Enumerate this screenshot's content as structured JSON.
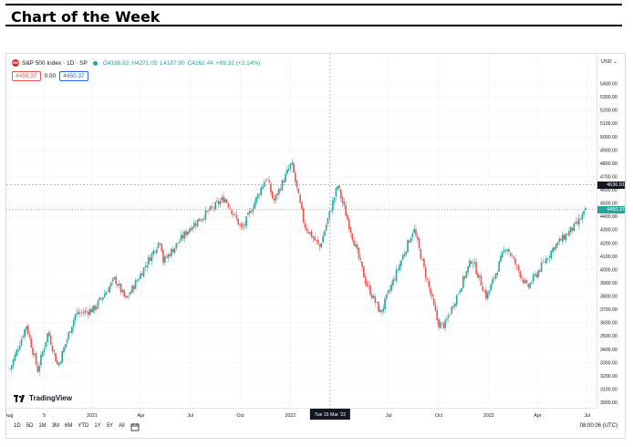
{
  "page": {
    "title": "Chart of the Week"
  },
  "chart": {
    "legend": {
      "symbol_badge": "500",
      "title": "S&P 500 Index · 1D · SP",
      "open": "O4188.82",
      "high": "H4271.05",
      "low": "L4187.90",
      "close": "C4262.44",
      "change": "+89.32 (+2.14%)"
    },
    "sell_price": "4450.37",
    "spread": "0.00",
    "buy_price": "4450.37",
    "currency": "USD",
    "crosshair_price": "4636.91",
    "last_price": "4450.37",
    "crosshair_date": "Tue 15 Mar '22",
    "logo_text": "TradingView",
    "timeframes": [
      "1D",
      "5D",
      "1M",
      "3M",
      "6M",
      "YTD",
      "1Y",
      "5Y",
      "All"
    ],
    "clock": "08:00:06 (UTC)",
    "colors": {
      "up": "#26a69a",
      "down": "#ef5350",
      "axis_text": "#131722",
      "grid": "#f0f3fa",
      "crosshair": "#9598a1"
    }
  },
  "chart_data": {
    "type": "candlestick",
    "title": "S&P 500 Index · 1D · SP",
    "ylim": [
      3000,
      5500
    ],
    "y_ticks": [
      5400,
      5300,
      5200,
      5100,
      5000,
      4900,
      4800,
      4700,
      4600,
      4500,
      4400,
      4300,
      4200,
      4100,
      4000,
      3900,
      3800,
      3700,
      3600,
      3500,
      3400,
      3300,
      3200,
      3100,
      3000
    ],
    "x_ticks": [
      {
        "label": "Aug",
        "date": "2020-08"
      },
      {
        "label": "5",
        "date": "2020-10-05"
      },
      {
        "label": "2021",
        "date": "2021-01"
      },
      {
        "label": "Apr",
        "date": "2021-04"
      },
      {
        "label": "Jul",
        "date": "2021-07"
      },
      {
        "label": "Oct",
        "date": "2021-10"
      },
      {
        "label": "2022",
        "date": "2022-01"
      },
      {
        "label": "Jul",
        "date": "2022-07"
      },
      {
        "label": "Oct",
        "date": "2022-10"
      },
      {
        "label": "2023",
        "date": "2023-01"
      },
      {
        "label": "Apr",
        "date": "2023-04"
      },
      {
        "label": "Jul",
        "date": "2023-07"
      }
    ],
    "trend": [
      {
        "date": "2020-08-03",
        "close": 3250
      },
      {
        "date": "2020-09-02",
        "close": 3580
      },
      {
        "date": "2020-09-23",
        "close": 3240
      },
      {
        "date": "2020-10-12",
        "close": 3530
      },
      {
        "date": "2020-10-30",
        "close": 3270
      },
      {
        "date": "2020-12-01",
        "close": 3660
      },
      {
        "date": "2021-01-04",
        "close": 3700
      },
      {
        "date": "2021-02-12",
        "close": 3930
      },
      {
        "date": "2021-03-04",
        "close": 3770
      },
      {
        "date": "2021-05-07",
        "close": 4230
      },
      {
        "date": "2021-05-12",
        "close": 4060
      },
      {
        "date": "2021-07-01",
        "close": 4320
      },
      {
        "date": "2021-09-02",
        "close": 4540
      },
      {
        "date": "2021-10-04",
        "close": 4300
      },
      {
        "date": "2021-11-18",
        "close": 4700
      },
      {
        "date": "2021-12-01",
        "close": 4510
      },
      {
        "date": "2022-01-03",
        "close": 4800
      },
      {
        "date": "2022-01-27",
        "close": 4330
      },
      {
        "date": "2022-02-24",
        "close": 4170
      },
      {
        "date": "2022-03-29",
        "close": 4630
      },
      {
        "date": "2022-05-20",
        "close": 3900
      },
      {
        "date": "2022-06-16",
        "close": 3670
      },
      {
        "date": "2022-08-16",
        "close": 4310
      },
      {
        "date": "2022-09-30",
        "close": 3590
      },
      {
        "date": "2022-10-12",
        "close": 3580
      },
      {
        "date": "2022-12-01",
        "close": 4080
      },
      {
        "date": "2022-12-28",
        "close": 3790
      },
      {
        "date": "2023-02-02",
        "close": 4180
      },
      {
        "date": "2023-03-13",
        "close": 3860
      },
      {
        "date": "2023-05-01",
        "close": 4170
      },
      {
        "date": "2023-06-12",
        "close": 4340
      },
      {
        "date": "2023-06-30",
        "close": 4450
      }
    ],
    "xlabel": "",
    "ylabel": "",
    "grid": true,
    "crosshair": {
      "date": "2022-03-15",
      "price": 4636.91
    },
    "last_price": 4450.37
  }
}
